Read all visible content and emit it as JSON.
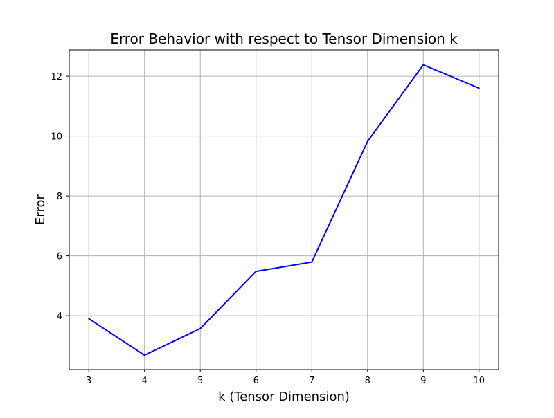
{
  "chart_data": {
    "type": "line",
    "title": "Error Behavior with respect to Tensor Dimension k",
    "xlabel": "k (Tensor Dimension)",
    "ylabel": "Error",
    "x": [
      3,
      4,
      5,
      6,
      7,
      8,
      9,
      10
    ],
    "series": [
      {
        "values": [
          3.9,
          2.68,
          3.57,
          5.48,
          5.79,
          9.82,
          12.38,
          11.6
        ],
        "color": "#0000ff"
      }
    ],
    "xlim": [
      2.65,
      10.35
    ],
    "ylim": [
      2.2,
      12.88
    ],
    "xticks": [
      3,
      4,
      5,
      6,
      7,
      8,
      9,
      10
    ],
    "yticks": [
      4,
      6,
      8,
      10,
      12
    ],
    "grid": true,
    "grid_color": "#b0b0b0",
    "axis_color": "#000000"
  }
}
